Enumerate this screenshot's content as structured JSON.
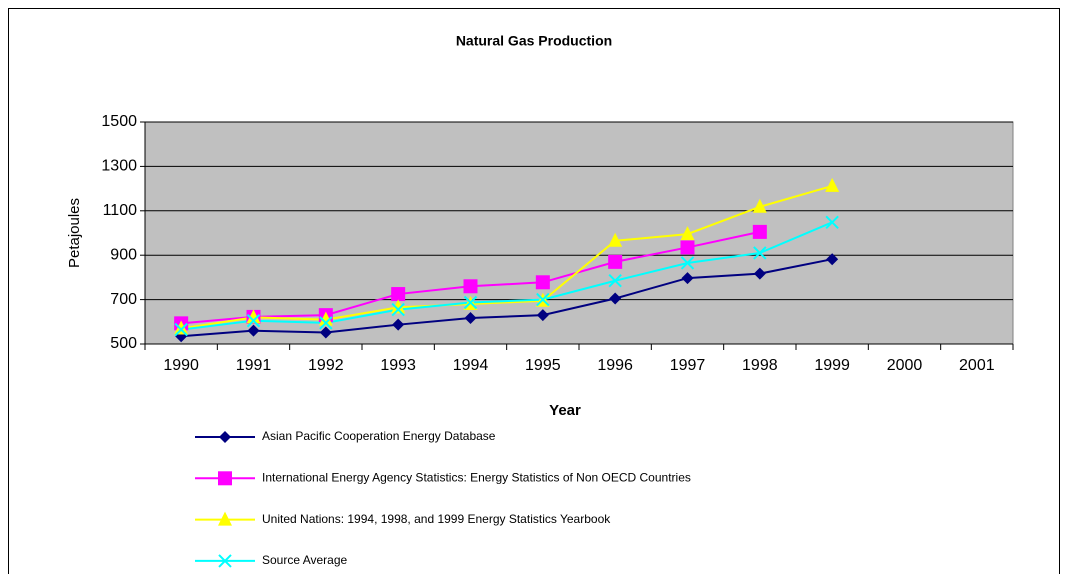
{
  "chart_data": {
    "type": "line",
    "title": "Natural Gas Production",
    "x_label": "Year",
    "y_label": "Petajoules",
    "categories": [
      "1990",
      "1991",
      "1992",
      "1993",
      "1994",
      "1995",
      "1996",
      "1997",
      "1998",
      "1999",
      "2000",
      "2001"
    ],
    "ylim": [
      500,
      1500
    ],
    "yticks": [
      500,
      700,
      900,
      1100,
      1300,
      1500
    ],
    "grid": true,
    "plot_background": "#c0c0c0",
    "series": [
      {
        "name": "Asian Pacific Cooperation Energy Database",
        "color": "#000080",
        "marker": "diamond",
        "values": [
          535,
          560,
          552,
          587,
          617,
          630,
          705,
          797,
          817,
          882,
          null,
          null
        ]
      },
      {
        "name": "International Energy Agency Statistics: Energy Statistics of Non OECD Countries",
        "color": "#ff00ff",
        "marker": "square",
        "values": [
          593,
          622,
          630,
          725,
          760,
          778,
          870,
          935,
          1005,
          null,
          null,
          null
        ]
      },
      {
        "name": "United Nations: 1994, 1998, and 1999 Energy Statistics Yearbook",
        "color": "#ffff00",
        "marker": "triangle",
        "values": [
          570,
          620,
          610,
          665,
          680,
          695,
          965,
          995,
          1118,
          1212,
          null,
          null
        ]
      },
      {
        "name": "Source Average",
        "color": "#00ffff",
        "marker": "x",
        "values": [
          565,
          605,
          595,
          655,
          687,
          700,
          785,
          865,
          910,
          1048,
          null,
          null
        ]
      }
    ]
  }
}
